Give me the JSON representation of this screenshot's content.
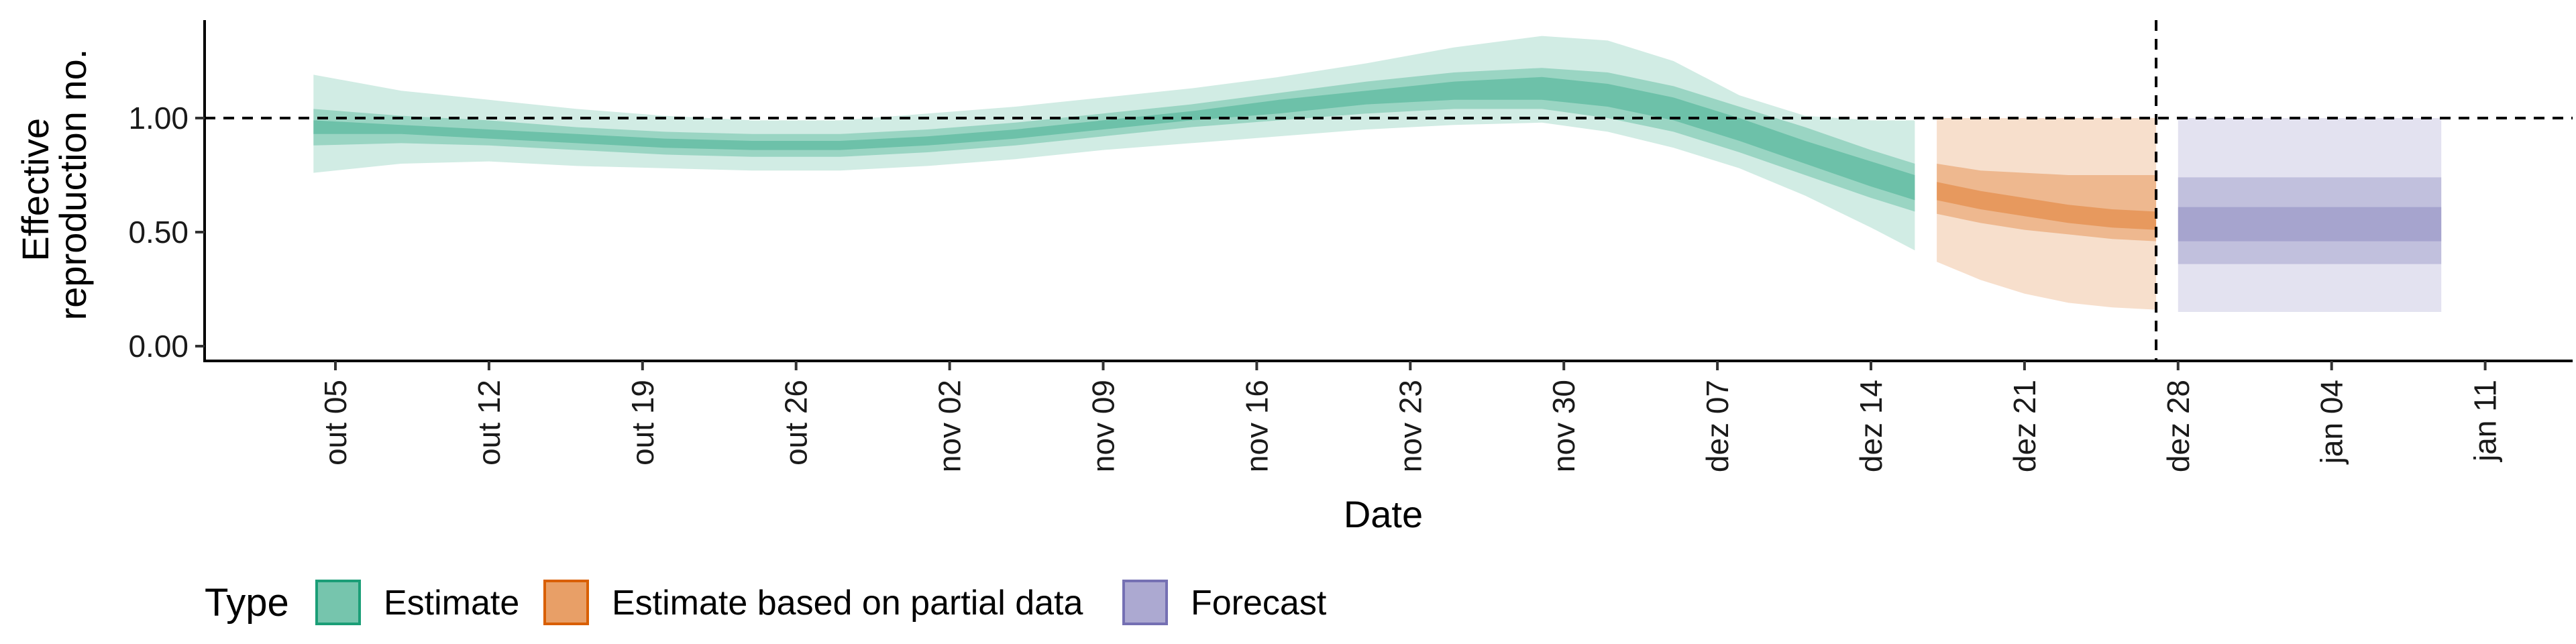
{
  "chart_data": {
    "type": "area",
    "xlabel": "Date",
    "ylabel_lines": [
      "Effective",
      "reproduction no."
    ],
    "x_start": "2020-10-05",
    "x_ticks": [
      "out 05",
      "out 12",
      "out 19",
      "out 26",
      "nov 02",
      "nov 09",
      "nov 16",
      "nov 23",
      "nov 30",
      "dez 07",
      "dez 14",
      "dez 21",
      "dez 28",
      "jan 04",
      "jan 11"
    ],
    "y_ticks": [
      "0.00",
      "0.50",
      "1.00"
    ],
    "ylim": [
      0,
      1.43
    ],
    "reference_line_y": 1.0,
    "cutoff_date": "2020-12-27",
    "series": [
      {
        "name": "Estimate",
        "color": "#1b9e77",
        "dates": [
          "2020-10-04",
          "2020-10-08",
          "2020-10-12",
          "2020-10-16",
          "2020-10-20",
          "2020-10-24",
          "2020-10-28",
          "2020-11-01",
          "2020-11-05",
          "2020-11-09",
          "2020-11-13",
          "2020-11-17",
          "2020-11-21",
          "2020-11-25",
          "2020-11-29",
          "2020-12-02",
          "2020-12-05",
          "2020-12-08",
          "2020-12-11",
          "2020-12-14",
          "2020-12-16"
        ],
        "median": [
          0.96,
          0.95,
          0.93,
          0.91,
          0.89,
          0.88,
          0.88,
          0.9,
          0.93,
          0.97,
          1.01,
          1.05,
          1.09,
          1.12,
          1.13,
          1.1,
          1.04,
          0.95,
          0.85,
          0.75,
          0.69
        ],
        "ci20": [
          [
            0.93,
            0.99
          ],
          [
            0.93,
            0.97
          ],
          [
            0.91,
            0.95
          ],
          [
            0.89,
            0.93
          ],
          [
            0.87,
            0.91
          ],
          [
            0.86,
            0.9
          ],
          [
            0.86,
            0.9
          ],
          [
            0.88,
            0.92
          ],
          [
            0.91,
            0.95
          ],
          [
            0.95,
            0.99
          ],
          [
            0.99,
            1.03
          ],
          [
            1.02,
            1.08
          ],
          [
            1.06,
            1.12
          ],
          [
            1.08,
            1.16
          ],
          [
            1.08,
            1.18
          ],
          [
            1.05,
            1.15
          ],
          [
            0.99,
            1.09
          ],
          [
            0.9,
            1.0
          ],
          [
            0.8,
            0.9
          ],
          [
            0.7,
            0.81
          ],
          [
            0.64,
            0.75
          ]
        ],
        "ci50": [
          [
            0.88,
            1.04
          ],
          [
            0.89,
            1.01
          ],
          [
            0.88,
            0.99
          ],
          [
            0.86,
            0.96
          ],
          [
            0.84,
            0.94
          ],
          [
            0.83,
            0.93
          ],
          [
            0.83,
            0.93
          ],
          [
            0.85,
            0.95
          ],
          [
            0.88,
            0.98
          ],
          [
            0.92,
            1.02
          ],
          [
            0.96,
            1.06
          ],
          [
            0.99,
            1.11
          ],
          [
            1.02,
            1.16
          ],
          [
            1.04,
            1.2
          ],
          [
            1.04,
            1.22
          ],
          [
            1.0,
            1.2
          ],
          [
            0.94,
            1.14
          ],
          [
            0.85,
            1.05
          ],
          [
            0.75,
            0.96
          ],
          [
            0.65,
            0.86
          ],
          [
            0.59,
            0.8
          ]
        ],
        "ci90": [
          [
            0.76,
            1.19
          ],
          [
            0.8,
            1.12
          ],
          [
            0.81,
            1.08
          ],
          [
            0.79,
            1.04
          ],
          [
            0.78,
            1.01
          ],
          [
            0.77,
            0.99
          ],
          [
            0.77,
            0.99
          ],
          [
            0.79,
            1.02
          ],
          [
            0.82,
            1.05
          ],
          [
            0.86,
            1.09
          ],
          [
            0.89,
            1.13
          ],
          [
            0.92,
            1.18
          ],
          [
            0.95,
            1.24
          ],
          [
            0.97,
            1.31
          ],
          [
            0.98,
            1.36
          ],
          [
            0.94,
            1.34
          ],
          [
            0.87,
            1.25
          ],
          [
            0.78,
            1.1
          ],
          [
            0.66,
            1.01
          ],
          [
            0.52,
            0.99
          ],
          [
            0.42,
            0.99
          ]
        ]
      },
      {
        "name": "Estimate based on partial data",
        "color": "#d95f02",
        "dates": [
          "2020-12-17",
          "2020-12-19",
          "2020-12-21",
          "2020-12-23",
          "2020-12-25",
          "2020-12-27"
        ],
        "median": [
          0.68,
          0.64,
          0.61,
          0.58,
          0.56,
          0.55
        ],
        "ci20": [
          [
            0.64,
            0.72
          ],
          [
            0.6,
            0.68
          ],
          [
            0.57,
            0.65
          ],
          [
            0.54,
            0.62
          ],
          [
            0.52,
            0.6
          ],
          [
            0.51,
            0.59
          ]
        ],
        "ci50": [
          [
            0.58,
            0.8
          ],
          [
            0.54,
            0.77
          ],
          [
            0.51,
            0.76
          ],
          [
            0.49,
            0.75
          ],
          [
            0.47,
            0.75
          ],
          [
            0.46,
            0.75
          ]
        ],
        "ci90": [
          [
            0.37,
            1.0
          ],
          [
            0.29,
            1.0
          ],
          [
            0.23,
            1.0
          ],
          [
            0.19,
            1.0
          ],
          [
            0.17,
            1.0
          ],
          [
            0.16,
            1.0
          ]
        ]
      },
      {
        "name": "Forecast",
        "color": "#7570b3",
        "dates": [
          "2020-12-28",
          "2021-01-09"
        ],
        "median": [
          0.55,
          0.55
        ],
        "ci20": [
          [
            0.46,
            0.61
          ],
          [
            0.46,
            0.61
          ]
        ],
        "ci50": [
          [
            0.36,
            0.74
          ],
          [
            0.36,
            0.74
          ]
        ],
        "ci90": [
          [
            0.15,
            1.0
          ],
          [
            0.15,
            1.0
          ]
        ]
      }
    ],
    "legend": {
      "title": "Type",
      "placement": "bottom-left",
      "items": [
        {
          "label": "Estimate",
          "color": "#1b9e77"
        },
        {
          "label": "Estimate based on partial data",
          "color": "#d95f02"
        },
        {
          "label": "Forecast",
          "color": "#7570b3"
        }
      ]
    }
  }
}
